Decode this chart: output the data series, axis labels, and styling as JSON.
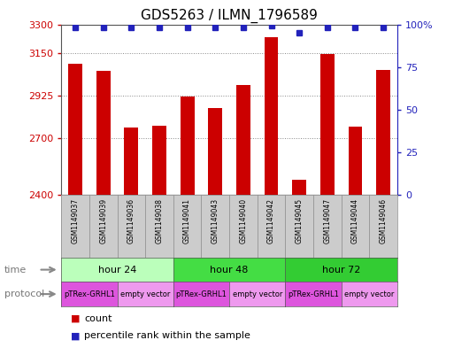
{
  "title": "GDS5263 / ILMN_1796589",
  "samples": [
    "GSM1149037",
    "GSM1149039",
    "GSM1149036",
    "GSM1149038",
    "GSM1149041",
    "GSM1149043",
    "GSM1149040",
    "GSM1149042",
    "GSM1149045",
    "GSM1149047",
    "GSM1149044",
    "GSM1149046"
  ],
  "counts": [
    3090,
    3055,
    2755,
    2765,
    2920,
    2860,
    2980,
    3230,
    2480,
    3145,
    2760,
    3060
  ],
  "percentile_ranks": [
    98,
    98,
    98,
    98,
    98,
    98,
    98,
    99,
    95,
    98,
    98,
    98
  ],
  "ylim_left": [
    2400,
    3300
  ],
  "ylim_right": [
    0,
    100
  ],
  "yticks_left": [
    2400,
    2700,
    2925,
    3150,
    3300
  ],
  "ytick_labels_left": [
    "2400",
    "2700",
    "2925",
    "3150",
    "3300"
  ],
  "yticks_right": [
    0,
    25,
    50,
    75,
    100
  ],
  "ytick_labels_right": [
    "0",
    "25",
    "50",
    "75",
    "100%"
  ],
  "bar_color": "#cc0000",
  "dot_color": "#2222bb",
  "sample_box_color": "#cccccc",
  "sample_box_edge": "#888888",
  "time_groups": [
    {
      "label": "hour 24",
      "start": 0,
      "end": 4,
      "color": "#bbffbb"
    },
    {
      "label": "hour 48",
      "start": 4,
      "end": 8,
      "color": "#44dd44"
    },
    {
      "label": "hour 72",
      "start": 8,
      "end": 12,
      "color": "#33cc33"
    }
  ],
  "protocol_groups": [
    {
      "label": "pTRex-GRHL1",
      "start": 0,
      "end": 2,
      "color": "#dd55dd"
    },
    {
      "label": "empty vector",
      "start": 2,
      "end": 4,
      "color": "#ee99ee"
    },
    {
      "label": "pTRex-GRHL1",
      "start": 4,
      "end": 6,
      "color": "#dd55dd"
    },
    {
      "label": "empty vector",
      "start": 6,
      "end": 8,
      "color": "#ee99ee"
    },
    {
      "label": "pTRex-GRHL1",
      "start": 8,
      "end": 10,
      "color": "#dd55dd"
    },
    {
      "label": "empty vector",
      "start": 10,
      "end": 12,
      "color": "#ee99ee"
    }
  ],
  "legend_count_color": "#cc0000",
  "legend_dot_color": "#2222bb",
  "background_color": "#ffffff",
  "grid_color": "#888888",
  "title_fontsize": 11,
  "axis_label_color_left": "#cc0000",
  "axis_label_color_right": "#2222bb",
  "label_color_time": "#777777",
  "label_color_protocol": "#777777"
}
